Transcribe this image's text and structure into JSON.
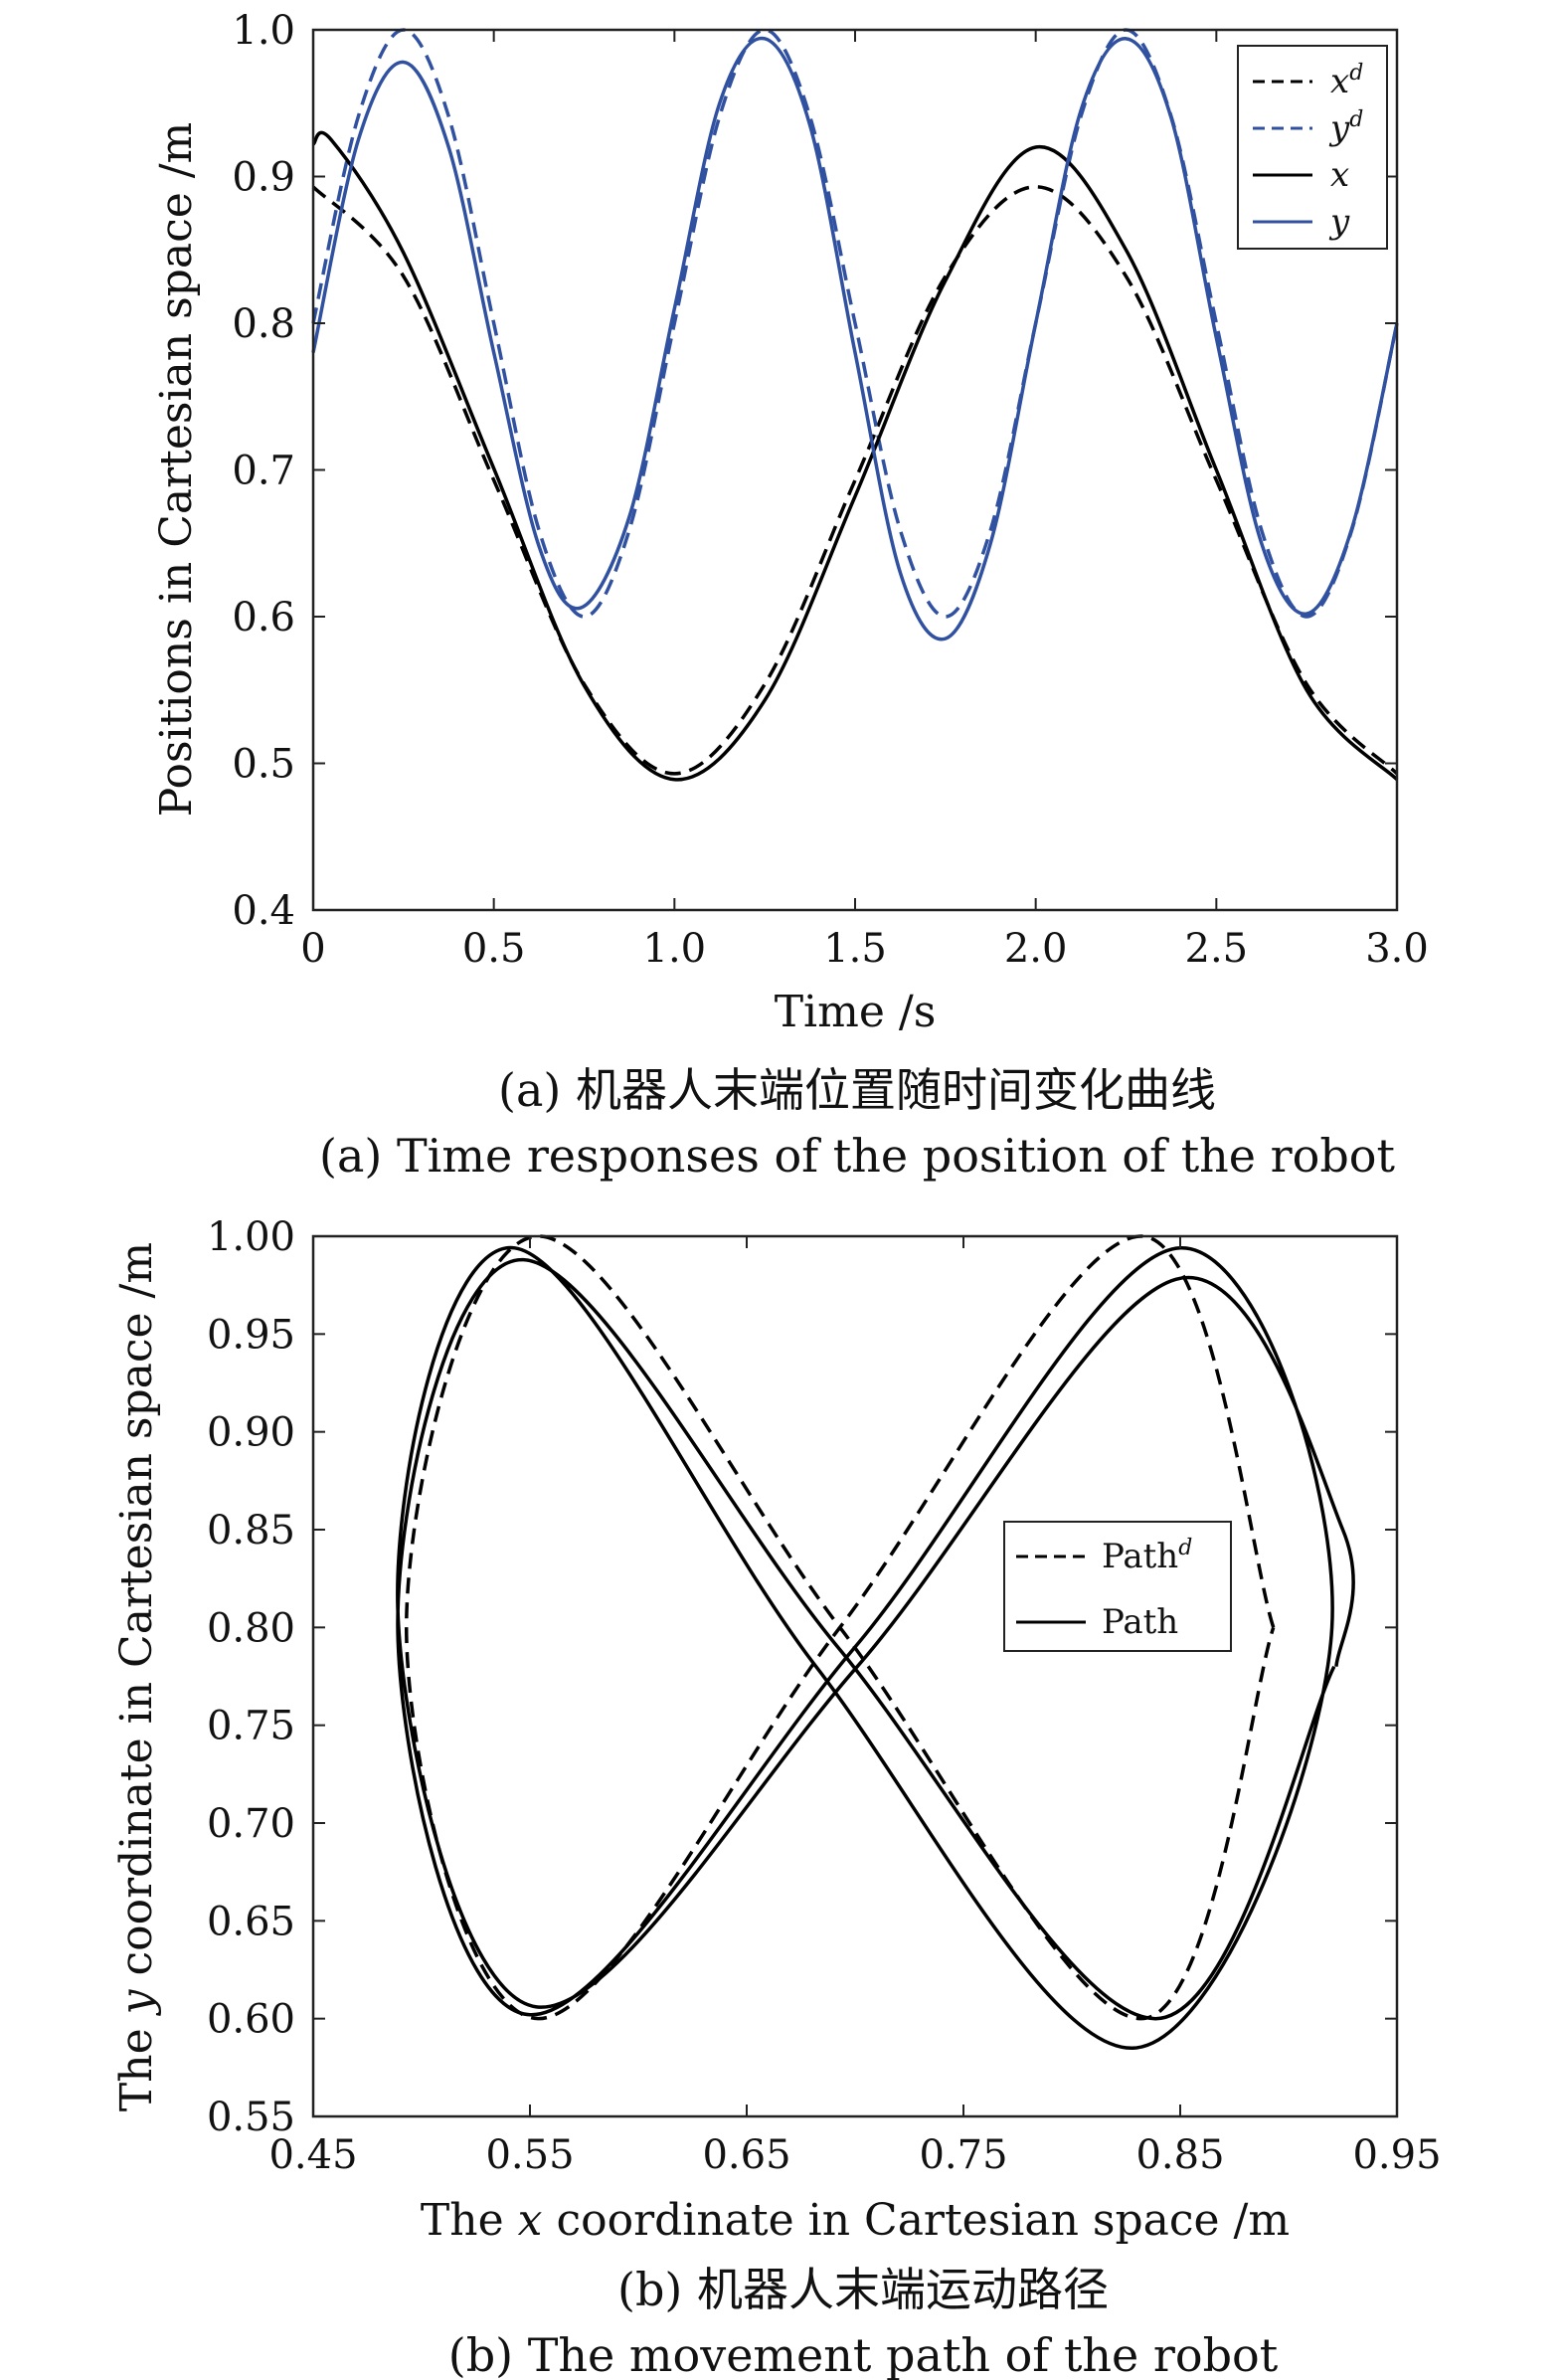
{
  "chart_data": [
    {
      "type": "line",
      "xlabel": "Time /s",
      "ylabel": "Positions in Cartesian space /m",
      "xlim": [
        0,
        3.0
      ],
      "ylim": [
        0.4,
        1.0
      ],
      "xticks": [
        "0",
        "0.5",
        "1.0",
        "1.5",
        "2.0",
        "2.5",
        "3.0"
      ],
      "yticks": [
        "0.4",
        "0.5",
        "0.6",
        "0.7",
        "0.8",
        "0.9",
        "1.0"
      ],
      "legend_position": "top-right",
      "grid": false,
      "series": [
        {
          "name": "x^d",
          "label_base": "x",
          "label_sup": "d",
          "color": "#000000",
          "dash": true,
          "width": 3.5,
          "x": [
            0,
            0.25,
            0.5,
            0.75,
            1.0,
            1.25,
            1.5,
            1.75,
            2.0,
            2.25,
            2.5,
            2.75,
            3.0
          ],
          "y": [
            0.893,
            0.832,
            0.693,
            0.554,
            0.493,
            0.554,
            0.693,
            0.832,
            0.893,
            0.832,
            0.693,
            0.554,
            0.493
          ]
        },
        {
          "name": "y^d",
          "label_base": "y",
          "label_sup": "d",
          "color": "#3050a0",
          "dash": true,
          "width": 3.5,
          "x": [
            0,
            0.125,
            0.25,
            0.375,
            0.5,
            0.625,
            0.75,
            0.875,
            1.0,
            1.125,
            1.25,
            1.375,
            1.5,
            1.625,
            1.75,
            1.875,
            2.0,
            2.125,
            2.25,
            2.375,
            2.5,
            2.625,
            2.75,
            2.875,
            3.0
          ],
          "y": [
            0.8,
            0.941,
            1.0,
            0.941,
            0.8,
            0.659,
            0.6,
            0.659,
            0.8,
            0.941,
            1.0,
            0.941,
            0.8,
            0.659,
            0.6,
            0.659,
            0.8,
            0.941,
            1.0,
            0.941,
            0.8,
            0.659,
            0.6,
            0.659,
            0.8
          ]
        },
        {
          "name": "x",
          "label_base": "x",
          "label_sup": "",
          "color": "#000000",
          "dash": false,
          "width": 3.5,
          "x": [
            0,
            0.05,
            0.25,
            0.5,
            0.75,
            1.0,
            1.25,
            1.5,
            1.75,
            2.0,
            2.25,
            2.5,
            2.75,
            3.0
          ],
          "y": [
            0.922,
            0.925,
            0.848,
            0.701,
            0.553,
            0.489,
            0.543,
            0.682,
            0.829,
            0.92,
            0.85,
            0.7,
            0.55,
            0.489
          ]
        },
        {
          "name": "y",
          "label_base": "y",
          "label_sup": "",
          "color": "#3050a0",
          "dash": false,
          "width": 3.5,
          "x": [
            0,
            0.125,
            0.25,
            0.375,
            0.5,
            0.625,
            0.74,
            0.875,
            1.0,
            1.125,
            1.25,
            1.375,
            1.5,
            1.625,
            1.75,
            1.875,
            2.0,
            2.125,
            2.25,
            2.375,
            2.5,
            2.625,
            2.75,
            2.875,
            3.0
          ],
          "y": [
            0.78,
            0.925,
            0.978,
            0.92,
            0.78,
            0.648,
            0.606,
            0.668,
            0.81,
            0.95,
            0.994,
            0.935,
            0.78,
            0.63,
            0.585,
            0.65,
            0.8,
            0.945,
            0.994,
            0.94,
            0.79,
            0.65,
            0.602,
            0.66,
            0.8
          ]
        }
      ]
    },
    {
      "type": "line",
      "xlabel_pre": "The",
      "xlabel_var": "x",
      "xlabel_post": "coordinate in Cartesian space /m",
      "ylabel_pre": "The",
      "ylabel_var": "y",
      "ylabel_post": "coordinate in Cartesian space /m",
      "xlim": [
        0.45,
        0.95
      ],
      "ylim": [
        0.55,
        1.0
      ],
      "xticks": [
        "0.45",
        "0.55",
        "0.65",
        "0.75",
        "0.85",
        "0.95"
      ],
      "yticks": [
        "0.55",
        "0.60",
        "0.65",
        "0.70",
        "0.75",
        "0.80",
        "0.85",
        "0.90",
        "0.95",
        "1.00"
      ],
      "legend_position": "center-right",
      "grid": false,
      "series": [
        {
          "name": "Path^d",
          "label_base": "Path",
          "label_sup": "d",
          "color": "#000000",
          "dash": true,
          "width": 3.5,
          "x": [
            0.893,
            0.832,
            0.693,
            0.554,
            0.493,
            0.554,
            0.693,
            0.832,
            0.893
          ],
          "y": [
            0.8,
            1.0,
            0.8,
            0.6,
            0.8,
            1.0,
            0.8,
            0.6,
            0.8
          ]
        },
        {
          "name": "Path",
          "label_base": "Path",
          "label_sup": "",
          "color": "#000000",
          "dash": false,
          "width": 3.5,
          "x": [
            0.922,
            0.925,
            0.848,
            0.701,
            0.553,
            0.489,
            0.543,
            0.682,
            0.829,
            0.92,
            0.85,
            0.7,
            0.55,
            0.489,
            0.547,
            0.692,
            0.838,
            0.921
          ],
          "y": [
            0.78,
            0.85,
            0.978,
            0.78,
            0.606,
            0.81,
            0.994,
            0.78,
            0.585,
            0.8,
            0.994,
            0.79,
            0.602,
            0.8,
            0.988,
            0.79,
            0.6,
            0.78
          ]
        }
      ]
    }
  ],
  "captions": {
    "a_zh": "(a) 机器人末端位置随时间变化曲线",
    "a_en": "(a) Time responses of the position of the robot",
    "b_zh": "(b) 机器人末端运动路径",
    "b_en": "(b) The movement path of the robot"
  }
}
